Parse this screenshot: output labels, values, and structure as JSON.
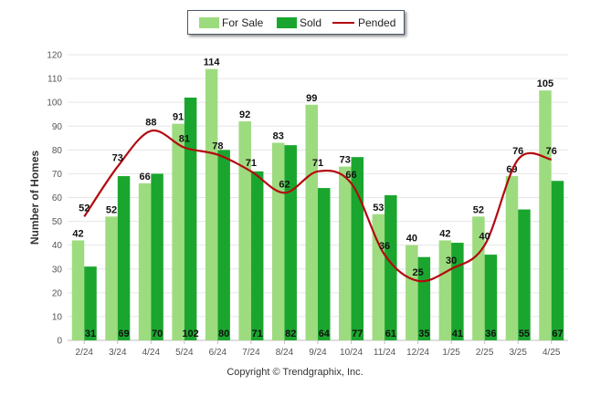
{
  "chart_data": {
    "type": "bar",
    "categories": [
      "2/24",
      "3/24",
      "4/24",
      "5/24",
      "6/24",
      "7/24",
      "8/24",
      "9/24",
      "10/24",
      "11/24",
      "12/24",
      "1/25",
      "2/25",
      "3/25",
      "4/25"
    ],
    "series": [
      {
        "name": "For Sale",
        "kind": "bar",
        "color": "#9ddb7f",
        "values": [
          42,
          52,
          66,
          91,
          114,
          92,
          83,
          99,
          73,
          53,
          40,
          42,
          52,
          69,
          105
        ]
      },
      {
        "name": "Sold",
        "kind": "bar",
        "color": "#1aa62e",
        "values": [
          31,
          69,
          70,
          102,
          80,
          71,
          82,
          64,
          77,
          61,
          35,
          41,
          36,
          55,
          67
        ]
      },
      {
        "name": "Pended",
        "kind": "line",
        "color": "#b3090f",
        "values": [
          52,
          73,
          88,
          81,
          78,
          71,
          62,
          71,
          66,
          36,
          25,
          30,
          40,
          76,
          76
        ]
      }
    ],
    "ylabel": "Number of Homes",
    "xlabel": "",
    "ylim": [
      0,
      120
    ],
    "yticks": [
      0,
      10,
      20,
      30,
      40,
      50,
      60,
      70,
      80,
      90,
      100,
      110,
      120
    ],
    "grid": true,
    "legend": "top-center"
  },
  "copyright": "Copyright © Trendgraphix, Inc."
}
